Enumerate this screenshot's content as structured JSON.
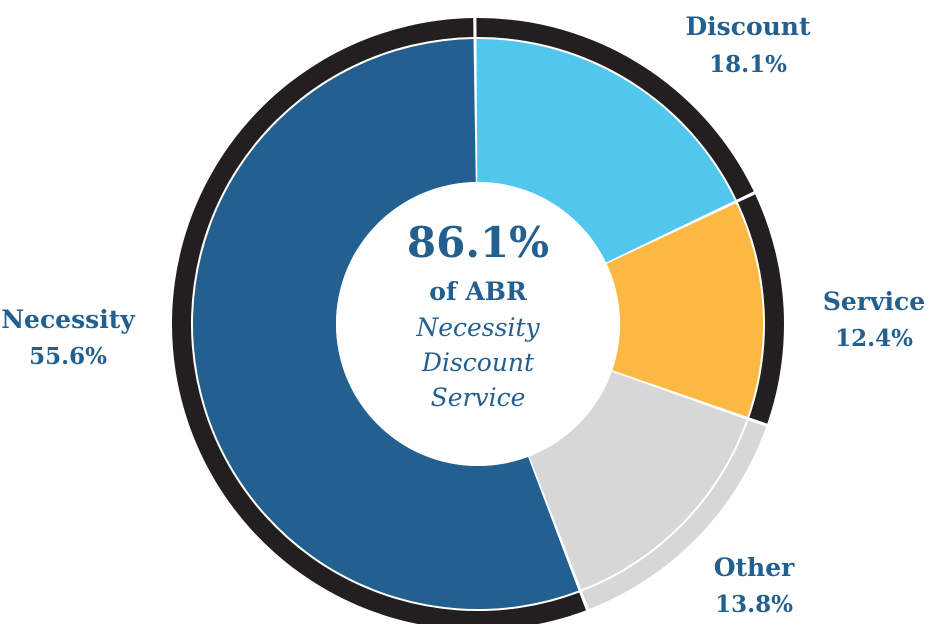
{
  "chart_data": {
    "type": "pie",
    "categories": [
      "Discount",
      "Service",
      "Other",
      "Necessity"
    ],
    "values": [
      18.1,
      12.4,
      13.8,
      55.6
    ],
    "value_labels": [
      "18.1%",
      "12.4%",
      "13.8%",
      "55.6%"
    ],
    "colors": {
      "Discount": "#52c7ed",
      "Service": "#fbb943",
      "Other": "#d7d7d7",
      "Necessity": "#24608f"
    },
    "outer_ring": {
      "description_segments": [
        "Discount",
        "Service",
        "Necessity"
      ],
      "color": "#231f20",
      "other_color": "#d7d7d7"
    },
    "center": {
      "value": "86.1%",
      "subtitle": "of ABR",
      "items": [
        "Necessity",
        "Discount",
        "Service"
      ],
      "value_color": "#24608f",
      "items_color": "#24608f"
    },
    "label_color": "#24608f"
  }
}
